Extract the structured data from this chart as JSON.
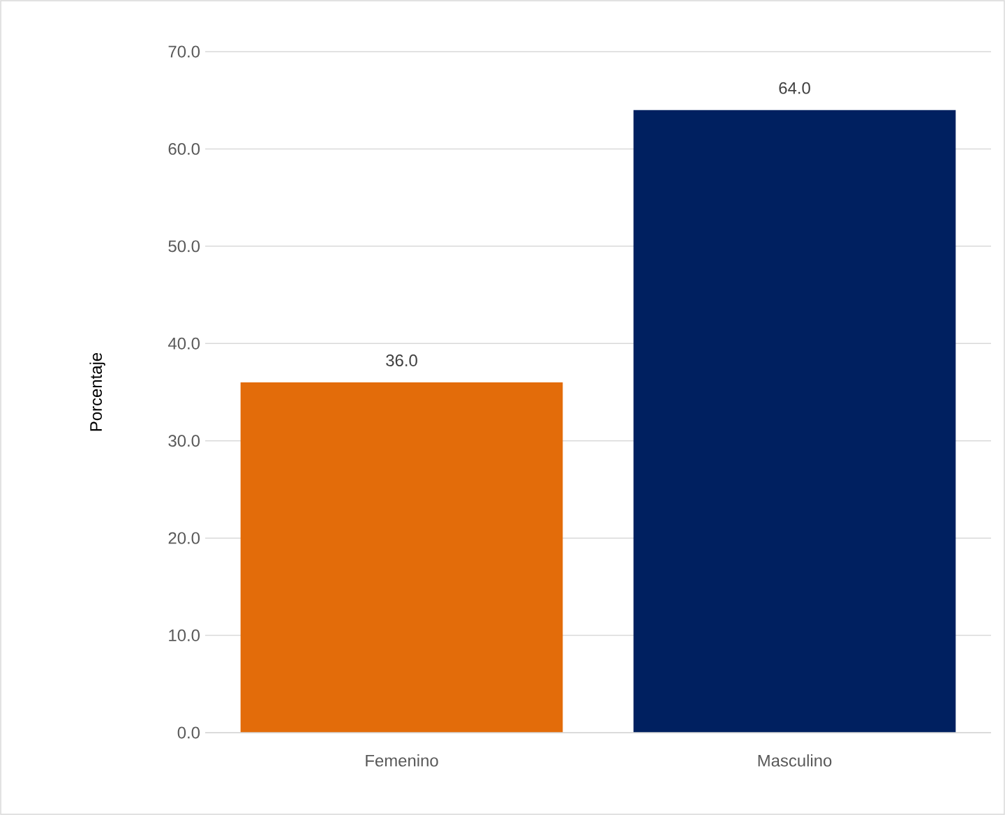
{
  "chart_data": {
    "type": "bar",
    "categories": [
      "Femenino",
      "Masculino"
    ],
    "values": [
      36.0,
      64.0
    ],
    "colors": [
      "#e36c0a",
      "#002060"
    ],
    "value_labels": [
      "36.0",
      "64.0"
    ],
    "ylabel": "Porcentaje",
    "ylim": [
      0,
      70
    ],
    "yticks": [
      {
        "value": 0,
        "label": "0.0"
      },
      {
        "value": 10,
        "label": "10.0"
      },
      {
        "value": 20,
        "label": "20.0"
      },
      {
        "value": 30,
        "label": "30.0"
      },
      {
        "value": 40,
        "label": "40.0"
      },
      {
        "value": 50,
        "label": "50.0"
      },
      {
        "value": 60,
        "label": "60.0"
      },
      {
        "value": 70,
        "label": "70.0"
      }
    ],
    "grid": "y"
  }
}
